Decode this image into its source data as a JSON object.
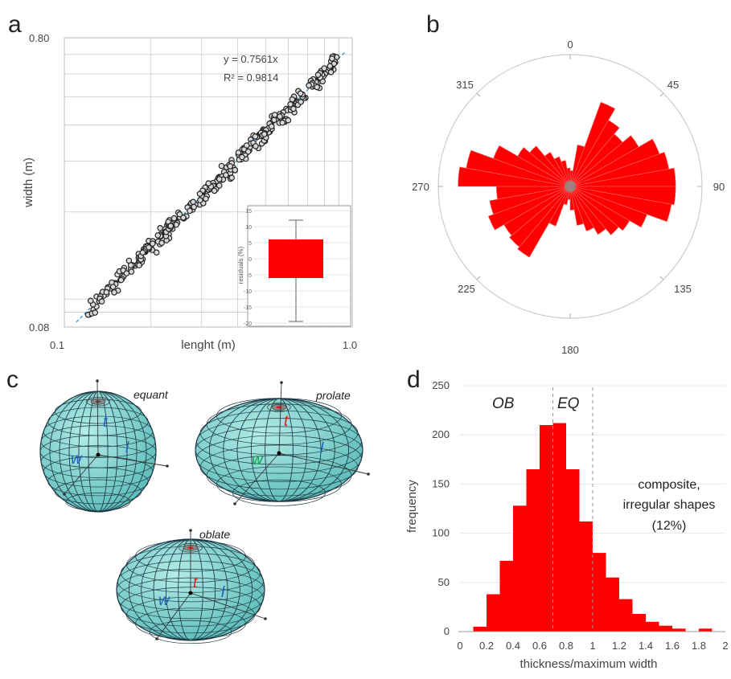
{
  "panels": {
    "a": "a",
    "b": "b",
    "c": "c",
    "d": "d"
  },
  "colors": {
    "red": "#ff0000",
    "sphere": "#7ad0cc",
    "grid": "#c8c8c8",
    "marker": "#222222",
    "trend": "#4aa0d8",
    "blueAxis": "#2060c0",
    "greenAxis": "#10a050"
  },
  "chart_data": [
    {
      "panel": "a",
      "type": "scatter",
      "xlabel": "lenght (m)",
      "ylabel": "width (m)",
      "xscale": "log",
      "yscale": "log",
      "xlim": [
        0.1,
        1.0
      ],
      "ylim": [
        0.08,
        0.8
      ],
      "x_tick_labels": [
        "0.1",
        "1.0"
      ],
      "y_tick_labels": [
        "0.08",
        "0.80"
      ],
      "equation": "y = 0.7561x",
      "r2": "R² = 0.9814",
      "fit_slope": 0.7561,
      "grid": true,
      "point_count": 320,
      "x_range": [
        0.12,
        0.9
      ],
      "inset": {
        "type": "box",
        "ylabel": "residuals (%)",
        "ylim": [
          -20,
          15
        ],
        "y_tick_labels": [
          "15",
          "10",
          "5",
          "0",
          "-5",
          "-10",
          "-15",
          "-20"
        ],
        "whisker_low": -19.5,
        "q1": -6,
        "q3": 6,
        "whisker_high": 12
      }
    },
    {
      "panel": "b",
      "type": "rose",
      "angle_labels": [
        "0",
        "45",
        "90",
        "135",
        "180",
        "225",
        "270",
        "315"
      ],
      "bin_deg": 10,
      "bins_start_deg": [
        0,
        10,
        20,
        30,
        40,
        50,
        60,
        70,
        80,
        90,
        100,
        110,
        120,
        130,
        140,
        150,
        160,
        170,
        180,
        190,
        200,
        210,
        220,
        230,
        240,
        250,
        260,
        270,
        280,
        290,
        300,
        310,
        320,
        330,
        340,
        350
      ],
      "radius_fraction": [
        0.12,
        0.32,
        0.68,
        0.58,
        0.52,
        0.6,
        0.72,
        0.76,
        0.8,
        0.8,
        0.78,
        0.62,
        0.52,
        0.48,
        0.42,
        0.36,
        0.3,
        0.18,
        0.1,
        0.14,
        0.32,
        0.62,
        0.6,
        0.58,
        0.66,
        0.62,
        0.56,
        0.85,
        0.8,
        0.62,
        0.46,
        0.4,
        0.3,
        0.24,
        0.2,
        0.14
      ]
    },
    {
      "panel": "d",
      "type": "bar",
      "xlabel": "thickness/maximum width",
      "ylabel": "frequency",
      "xlim": [
        0,
        2
      ],
      "ylim": [
        0,
        250
      ],
      "x_tick_labels": [
        "0",
        "0.2",
        "0.4",
        "0.6",
        "0.8",
        "1",
        "1.2",
        "1.4",
        "1.6",
        "1.8",
        "2"
      ],
      "y_tick_labels": [
        "0",
        "50",
        "100",
        "150",
        "200",
        "250"
      ],
      "bin_width": 0.1,
      "bin_left": [
        0.1,
        0.2,
        0.3,
        0.4,
        0.5,
        0.6,
        0.7,
        0.8,
        0.9,
        1.0,
        1.1,
        1.2,
        1.3,
        1.4,
        1.5,
        1.6,
        1.7,
        1.8
      ],
      "values": [
        5,
        38,
        72,
        128,
        165,
        210,
        212,
        165,
        112,
        80,
        55,
        33,
        18,
        10,
        6,
        3,
        0,
        3
      ],
      "region_labels": [
        "OB",
        "EQ"
      ],
      "region_boundaries": [
        0.7,
        1.0
      ],
      "annotation": [
        "composite,",
        "irregular shapes",
        "(12%)"
      ]
    }
  ],
  "ellipsoids": {
    "equant": {
      "title": "equant",
      "t": "t",
      "w": "w",
      "l": "l"
    },
    "prolate": {
      "title": "prolate",
      "t": "t",
      "w": "w",
      "l": "l"
    },
    "oblate": {
      "title": "oblate",
      "t": "t",
      "w": "w",
      "l": "l"
    }
  }
}
